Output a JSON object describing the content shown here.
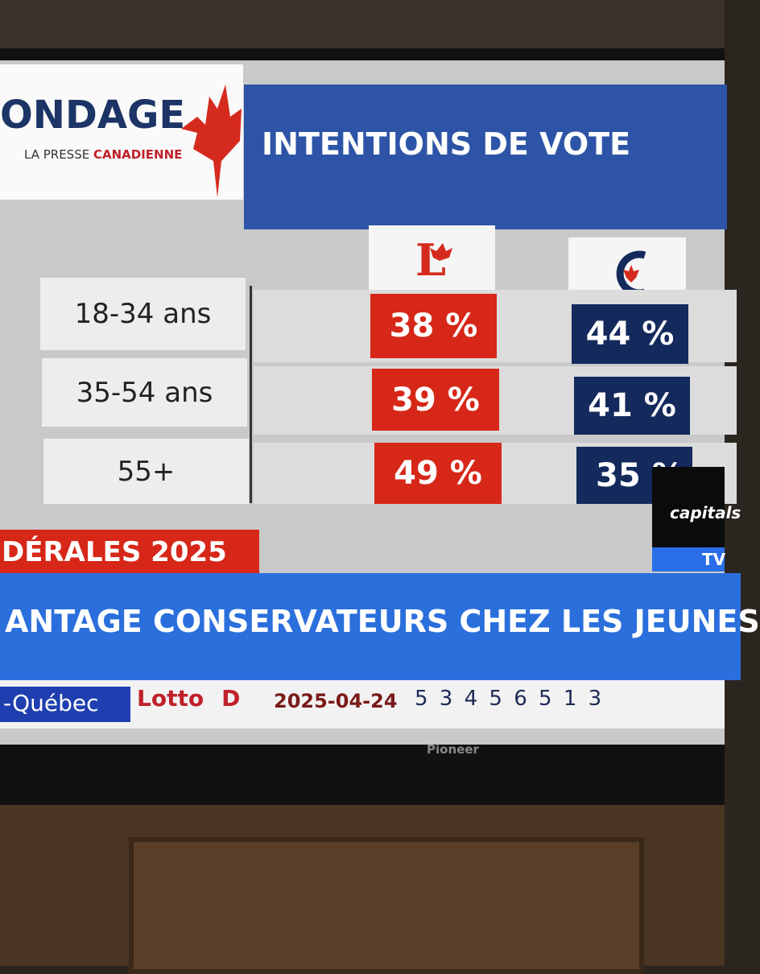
{
  "header": {
    "brand": "ONDAGE",
    "partner_a": "LA PRESSE",
    "partner_b": "CANADIENNE",
    "title": "INTENTIONS DE VOTE"
  },
  "table": {
    "rows": [
      [
        "18-34 ans",
        "38 %",
        "44 %"
      ],
      [
        "35-54 ans",
        "39 %",
        "41 %"
      ],
      [
        "55+",
        "49 %",
        "35 %"
      ]
    ]
  },
  "banner": "DÉRALES 2025",
  "ticker": "ANTAGE CONSERVATEURS CHEZ LES JEUNES",
  "bottom_bar": {
    "channel": "-Québec",
    "lotto": "Lotto",
    "lotto_suffix": "D",
    "date": "2025-04-24",
    "numbers": "5 3 4 5 6 5 1 3"
  },
  "overlay": {
    "team": "capitals",
    "network": "TV"
  },
  "tv_brand": "Pioneer"
}
